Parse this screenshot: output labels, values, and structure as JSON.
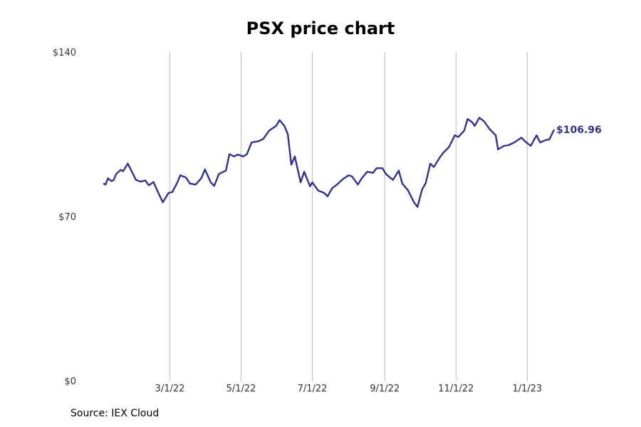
{
  "chart_data": {
    "type": "line",
    "title": "PSX price chart",
    "source": "Source: IEX Cloud",
    "x_tick_labels": [
      "3/1/22",
      "5/1/22",
      "7/1/22",
      "9/1/22",
      "11/1/22",
      "1/1/23"
    ],
    "y_tick_labels": [
      "$0",
      "$70",
      "$140"
    ],
    "ylim": [
      0,
      140
    ],
    "grid": "vertical",
    "last_value_label": "$106.96",
    "line_color": "#33338a",
    "series": [
      {
        "points": [
          [
            "2022-01-03",
            84.0
          ],
          [
            "2022-01-05",
            83.5
          ],
          [
            "2022-01-07",
            86.2
          ],
          [
            "2022-01-10",
            85.0
          ],
          [
            "2022-01-12",
            85.5
          ],
          [
            "2022-01-14",
            88.0
          ],
          [
            "2022-01-18",
            89.8
          ],
          [
            "2022-01-20",
            89.2
          ],
          [
            "2022-01-24",
            92.5
          ],
          [
            "2022-01-27",
            89.5
          ],
          [
            "2022-01-31",
            85.5
          ],
          [
            "2022-02-04",
            84.8
          ],
          [
            "2022-02-08",
            85.3
          ],
          [
            "2022-02-11",
            83.2
          ],
          [
            "2022-02-15",
            84.6
          ],
          [
            "2022-02-18",
            81.3
          ],
          [
            "2022-02-23",
            76.0
          ],
          [
            "2022-02-28",
            80.0
          ],
          [
            "2022-03-03",
            80.3
          ],
          [
            "2022-03-07",
            84.0
          ],
          [
            "2022-03-10",
            87.5
          ],
          [
            "2022-03-15",
            86.5
          ],
          [
            "2022-03-18",
            84.0
          ],
          [
            "2022-03-23",
            83.5
          ],
          [
            "2022-03-28",
            86.3
          ],
          [
            "2022-03-31",
            90.0
          ],
          [
            "2022-04-05",
            84.5
          ],
          [
            "2022-04-08",
            83.0
          ],
          [
            "2022-04-12",
            88.0
          ],
          [
            "2022-04-18",
            89.5
          ],
          [
            "2022-04-21",
            96.5
          ],
          [
            "2022-04-25",
            95.5
          ],
          [
            "2022-04-28",
            96.3
          ],
          [
            "2022-05-03",
            95.5
          ],
          [
            "2022-05-06",
            96.5
          ],
          [
            "2022-05-10",
            101.5
          ],
          [
            "2022-05-16",
            102.0
          ],
          [
            "2022-05-20",
            103.0
          ],
          [
            "2022-05-25",
            106.5
          ],
          [
            "2022-05-31",
            108.5
          ],
          [
            "2022-06-03",
            111.0
          ],
          [
            "2022-06-07",
            108.5
          ],
          [
            "2022-06-10",
            105.0
          ],
          [
            "2022-06-13",
            92.0
          ],
          [
            "2022-06-16",
            95.5
          ],
          [
            "2022-06-21",
            84.5
          ],
          [
            "2022-06-24",
            89.0
          ],
          [
            "2022-06-29",
            82.8
          ],
          [
            "2022-07-01",
            84.5
          ],
          [
            "2022-07-06",
            81.0
          ],
          [
            "2022-07-11",
            80.0
          ],
          [
            "2022-07-14",
            78.5
          ],
          [
            "2022-07-18",
            82.0
          ],
          [
            "2022-07-22",
            83.5
          ],
          [
            "2022-07-27",
            85.8
          ],
          [
            "2022-08-01",
            87.5
          ],
          [
            "2022-08-04",
            87.0
          ],
          [
            "2022-08-09",
            83.5
          ],
          [
            "2022-08-12",
            86.0
          ],
          [
            "2022-08-17",
            89.0
          ],
          [
            "2022-08-22",
            88.5
          ],
          [
            "2022-08-25",
            90.5
          ],
          [
            "2022-08-30",
            90.5
          ],
          [
            "2022-09-02",
            88.0
          ],
          [
            "2022-09-08",
            85.5
          ],
          [
            "2022-09-13",
            89.5
          ],
          [
            "2022-09-16",
            84.0
          ],
          [
            "2022-09-21",
            81.0
          ],
          [
            "2022-09-26",
            76.0
          ],
          [
            "2022-09-29",
            74.0
          ],
          [
            "2022-10-03",
            81.5
          ],
          [
            "2022-10-06",
            84.0
          ],
          [
            "2022-10-10",
            92.5
          ],
          [
            "2022-10-13",
            91.0
          ],
          [
            "2022-10-18",
            95.0
          ],
          [
            "2022-10-21",
            97.0
          ],
          [
            "2022-10-26",
            99.5
          ],
          [
            "2022-10-31",
            104.5
          ],
          [
            "2022-11-03",
            103.8
          ],
          [
            "2022-11-08",
            106.5
          ],
          [
            "2022-11-11",
            111.5
          ],
          [
            "2022-11-15",
            110.0
          ],
          [
            "2022-11-17",
            108.5
          ],
          [
            "2022-11-21",
            112.0
          ],
          [
            "2022-11-25",
            110.5
          ],
          [
            "2022-11-30",
            107.0
          ],
          [
            "2022-12-05",
            104.5
          ],
          [
            "2022-12-07",
            98.5
          ],
          [
            "2022-12-12",
            100.0
          ],
          [
            "2022-12-16",
            100.3
          ],
          [
            "2022-12-21",
            101.5
          ],
          [
            "2022-12-27",
            103.5
          ],
          [
            "2022-12-30",
            102.0
          ],
          [
            "2023-01-04",
            100.0
          ],
          [
            "2023-01-09",
            104.5
          ],
          [
            "2023-01-12",
            101.5
          ],
          [
            "2023-01-17",
            102.5
          ],
          [
            "2023-01-20",
            102.8
          ],
          [
            "2023-01-24",
            106.96
          ]
        ]
      }
    ]
  }
}
